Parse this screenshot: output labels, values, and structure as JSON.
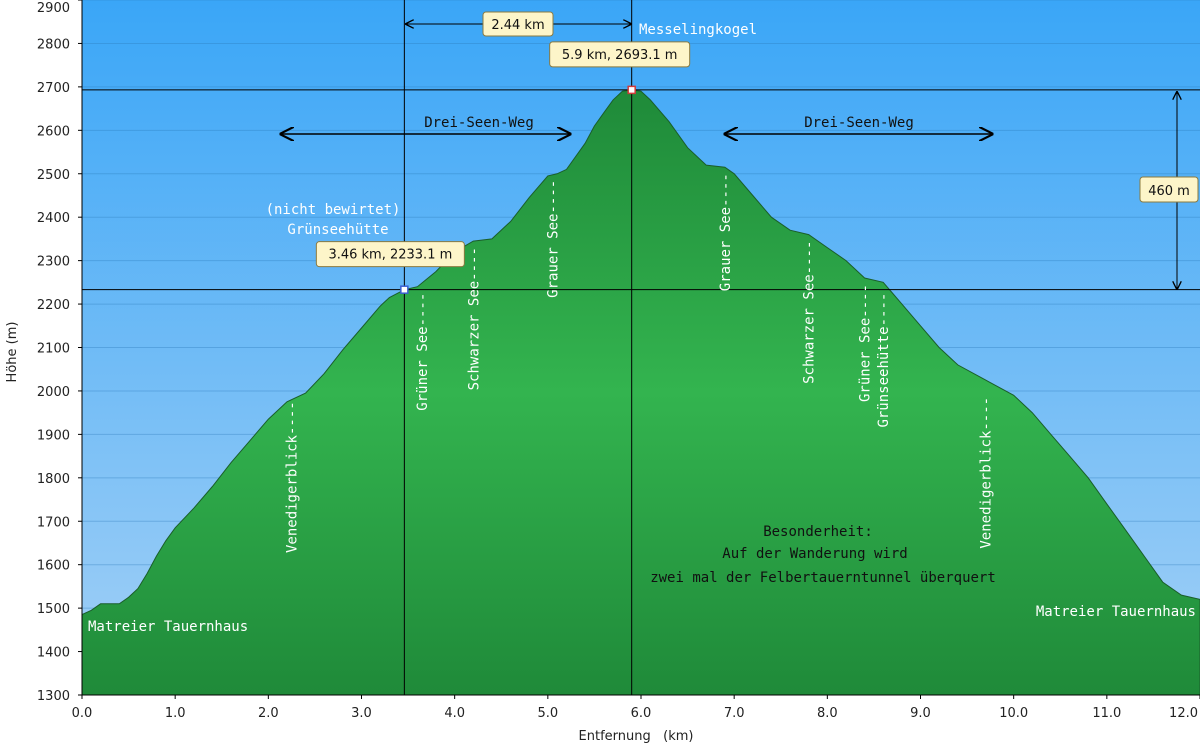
{
  "chart_data": {
    "type": "area",
    "xlabel": "Entfernung   (km)",
    "ylabel": "Höhe (m)",
    "xlim": [
      0,
      12
    ],
    "ylim": [
      1300,
      2900
    ],
    "x_ticks": [
      0,
      1,
      2,
      3,
      4,
      5,
      6,
      7,
      8,
      9,
      10,
      11,
      12
    ],
    "x_tick_labels": [
      "0.0",
      "1.0",
      "2.0",
      "3.0",
      "4.0",
      "5.0",
      "6.0",
      "7.0",
      "8.0",
      "9.0",
      "10.0",
      "11.0",
      "12.0"
    ],
    "y_ticks": [
      1300,
      1400,
      1500,
      1600,
      1700,
      1800,
      1900,
      2000,
      2100,
      2200,
      2300,
      2400,
      2500,
      2600,
      2700,
      2800,
      2900
    ],
    "y_tick_labels": [
      "1300",
      "1400",
      "1500",
      "1600",
      "1700",
      "1800",
      "1900",
      "2000",
      "2100",
      "2200",
      "2300",
      "2400",
      "2500",
      "2600",
      "2700",
      "2800",
      "2900"
    ],
    "grid": true,
    "colors": {
      "sky_top": "#3aa6f7",
      "sky_bottom": "#9fcdf6",
      "terrain_dark": "#1e8a38",
      "terrain_light": "#2fb04c",
      "callout_bg": "#fdf5c9",
      "marker": "#d23a3a"
    },
    "series": [
      {
        "x": [
          0.0,
          0.1,
          0.2,
          0.4,
          0.5,
          0.6,
          0.7,
          0.8,
          0.9,
          1.0,
          1.2,
          1.4,
          1.6,
          1.8,
          2.0,
          2.2,
          2.4,
          2.6,
          2.8,
          3.0,
          3.2,
          3.3,
          3.46,
          3.6,
          3.8,
          4.0,
          4.2,
          4.4,
          4.6,
          4.8,
          5.0,
          5.1,
          5.2,
          5.4,
          5.5,
          5.6,
          5.7,
          5.8,
          5.9,
          6.0,
          6.1,
          6.3,
          6.5,
          6.7,
          6.9,
          7.0,
          7.2,
          7.4,
          7.6,
          7.8,
          8.0,
          8.2,
          8.4,
          8.6,
          8.8,
          9.0,
          9.2,
          9.4,
          9.7,
          10.0,
          10.2,
          10.4,
          10.6,
          10.8,
          11.0,
          11.2,
          11.4,
          11.6,
          11.8,
          12.0
        ],
        "y": [
          1485,
          1495,
          1510,
          1510,
          1525,
          1545,
          1580,
          1620,
          1655,
          1685,
          1730,
          1780,
          1835,
          1885,
          1935,
          1975,
          1995,
          2040,
          2095,
          2145,
          2195,
          2215,
          2233,
          2240,
          2275,
          2320,
          2345,
          2350,
          2390,
          2445,
          2495,
          2500,
          2510,
          2570,
          2610,
          2640,
          2670,
          2690,
          2693,
          2690,
          2670,
          2620,
          2560,
          2520,
          2515,
          2500,
          2450,
          2400,
          2370,
          2360,
          2330,
          2300,
          2260,
          2250,
          2200,
          2150,
          2100,
          2060,
          2025,
          1990,
          1950,
          1900,
          1850,
          1800,
          1740,
          1680,
          1620,
          1560,
          1530,
          1520
        ]
      }
    ],
    "markers": [
      {
        "x": 3.46,
        "y": 2233.1,
        "label": "3.46 km, 2233.1 m"
      },
      {
        "x": 5.9,
        "y": 2693.1,
        "label": "5.9 km, 2693.1 m"
      }
    ],
    "distance_label": "2.44 km",
    "height_label": "460 m",
    "annotations": {
      "peak": "Messelingkogel",
      "hut_note": "(nicht bewirtet)",
      "hut": "Grünseehütte",
      "start": "Matreier Tauernhaus",
      "end": "Matreier Tauernhaus",
      "trail_left": "Drei-Seen-Weg",
      "trail_right": "Drei-Seen-Weg",
      "remark_title": "Besonderheit:",
      "remark_line1": "Auf der Wanderung wird",
      "remark_line2": "zwei mal der Felbertauerntunnel überquert"
    },
    "waypoints": [
      {
        "x": 2.25,
        "y": 1990,
        "label": "Venedigerblick"
      },
      {
        "x": 3.65,
        "y": 2240,
        "label": "Grüner See"
      },
      {
        "x": 4.2,
        "y": 2345,
        "label": "Schwarzer See"
      },
      {
        "x": 5.05,
        "y": 2500,
        "label": "Grauer See"
      },
      {
        "x": 6.9,
        "y": 2515,
        "label": "Grauer See"
      },
      {
        "x": 7.8,
        "y": 2360,
        "label": "Schwarzer See"
      },
      {
        "x": 8.4,
        "y": 2260,
        "label": "Grüner See"
      },
      {
        "x": 8.6,
        "y": 2240,
        "label": "Grünseehütte"
      },
      {
        "x": 9.7,
        "y": 2000,
        "label": "Venedigerblick"
      }
    ]
  }
}
